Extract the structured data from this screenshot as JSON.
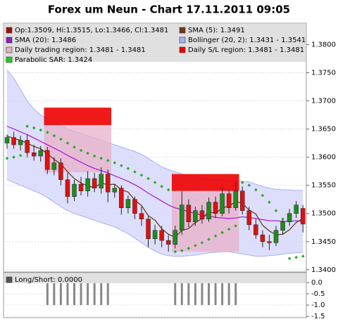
{
  "chart_data": [
    {
      "type": "candlestick",
      "title": "Forex um Neun - Chart 17.11.2011 09:05",
      "legend": [
        {
          "label": "Op:1.3509, Hi:1.3515, Lo:1.3466, Cl:1.3481",
          "color": "#a01010"
        },
        {
          "label": "SMA (5): 1.3491",
          "color": "#6b3b1a"
        },
        {
          "label": "SMA (20): 1.3486",
          "color": "#8b1fc8"
        },
        {
          "label": "Bollinger (20, 2): 1.3431 - 1.3541",
          "color": "#a8b0f0"
        },
        {
          "label": "Daily trading region: 1.3481 - 1.3481",
          "color": "#e8b0c8"
        },
        {
          "label": "Daily S/L region: 1.3481 - 1.3481",
          "color": "#ee0000"
        },
        {
          "label": "Parabolic SAR: 1.3424",
          "color": "#22cc22"
        }
      ],
      "open": [
        1.3625,
        1.3635,
        1.3622,
        1.363,
        1.3608,
        1.3602,
        1.3612,
        1.3578,
        1.359,
        1.356,
        1.353,
        1.3552,
        1.354,
        1.3562,
        1.3545,
        1.357,
        1.3538,
        1.3545,
        1.351,
        1.3525,
        1.35,
        1.349,
        1.3455,
        1.347,
        1.3452,
        1.3445,
        1.347,
        1.3515,
        1.3485,
        1.3505,
        1.349,
        1.352,
        1.35,
        1.3535,
        1.351,
        1.354,
        1.3505,
        1.348,
        1.3462,
        1.345,
        1.3448,
        1.347,
        1.3485,
        1.35,
        1.3509
      ],
      "high": [
        1.364,
        1.3645,
        1.3638,
        1.364,
        1.3622,
        1.362,
        1.3618,
        1.36,
        1.3598,
        1.3572,
        1.356,
        1.3565,
        1.3575,
        1.3572,
        1.3582,
        1.3578,
        1.3552,
        1.355,
        1.3532,
        1.353,
        1.3512,
        1.3495,
        1.348,
        1.3478,
        1.3462,
        1.3478,
        1.354,
        1.3525,
        1.3512,
        1.3515,
        1.3528,
        1.353,
        1.3545,
        1.3542,
        1.3555,
        1.3548,
        1.3512,
        1.349,
        1.347,
        1.3462,
        1.3478,
        1.3492,
        1.3508,
        1.3522,
        1.3515
      ],
      "low": [
        1.3615,
        1.3615,
        1.3612,
        1.36,
        1.3594,
        1.3592,
        1.357,
        1.3568,
        1.355,
        1.3518,
        1.3522,
        1.3532,
        1.353,
        1.3538,
        1.3535,
        1.352,
        1.3528,
        1.3498,
        1.35,
        1.349,
        1.3478,
        1.344,
        1.3445,
        1.344,
        1.3432,
        1.3438,
        1.3462,
        1.3475,
        1.3478,
        1.3482,
        1.3485,
        1.3492,
        1.3495,
        1.35,
        1.3505,
        1.3498,
        1.347,
        1.3455,
        1.344,
        1.3435,
        1.3442,
        1.3462,
        1.3478,
        1.3492,
        1.3466
      ],
      "close": [
        1.3635,
        1.3622,
        1.363,
        1.3608,
        1.3602,
        1.3612,
        1.3578,
        1.359,
        1.356,
        1.353,
        1.3552,
        1.354,
        1.3562,
        1.3545,
        1.357,
        1.3538,
        1.3545,
        1.351,
        1.3525,
        1.35,
        1.349,
        1.3455,
        1.347,
        1.3452,
        1.3445,
        1.347,
        1.3515,
        1.3485,
        1.3505,
        1.349,
        1.352,
        1.35,
        1.3535,
        1.351,
        1.354,
        1.3505,
        1.348,
        1.3462,
        1.345,
        1.3448,
        1.347,
        1.3485,
        1.35,
        1.3515,
        1.3481
      ],
      "up_color": "#1e8c1e",
      "down_color": "#dd1111",
      "sma5": {
        "color": "#6b3b1a",
        "values": [
          1.3638,
          1.3633,
          1.363,
          1.3625,
          1.3619,
          1.3615,
          1.3606,
          1.3596,
          1.3588,
          1.3574,
          1.3562,
          1.3554,
          1.3549,
          1.3546,
          1.3554,
          1.3551,
          1.3552,
          1.3542,
          1.3538,
          1.3524,
          1.3514,
          1.3496,
          1.3488,
          1.3473,
          1.3463,
          1.3458,
          1.347,
          1.3473,
          1.3484,
          1.3491,
          1.3503,
          1.35,
          1.351,
          1.3513,
          1.3521,
          1.3518,
          1.3506,
          1.3499,
          1.3479,
          1.3469,
          1.3462,
          1.3463,
          1.3471,
          1.3484,
          1.3491
        ]
      },
      "sma20": {
        "color": "#b01fd8",
        "values": [
          1.3655,
          1.365,
          1.3645,
          1.364,
          1.3634,
          1.3628,
          1.3622,
          1.3616,
          1.361,
          1.3603,
          1.3597,
          1.3591,
          1.3585,
          1.358,
          1.3576,
          1.3572,
          1.3567,
          1.3562,
          1.3557,
          1.3551,
          1.3544,
          1.3536,
          1.3529,
          1.3522,
          1.3515,
          1.351,
          1.3507,
          1.3503,
          1.35,
          1.3497,
          1.3495,
          1.3493,
          1.3492,
          1.3491,
          1.3492,
          1.3494,
          1.3493,
          1.3491,
          1.3489,
          1.3487,
          1.3487,
          1.3486,
          1.3486,
          1.3487,
          1.3486
        ]
      },
      "bollinger": {
        "color": "#d4d6fa",
        "line_color": "#a8b0f0",
        "upper": [
          1.3755,
          1.374,
          1.372,
          1.37,
          1.3685,
          1.3675,
          1.3668,
          1.3662,
          1.3656,
          1.365,
          1.3646,
          1.3642,
          1.3638,
          1.3634,
          1.363,
          1.3626,
          1.3622,
          1.3618,
          1.3614,
          1.361,
          1.3605,
          1.3598,
          1.359,
          1.3583,
          1.3578,
          1.3574,
          1.357,
          1.3567,
          1.3565,
          1.3563,
          1.3561,
          1.356,
          1.356,
          1.3558,
          1.3558,
          1.3557,
          1.3556,
          1.3552,
          1.3548,
          1.3545,
          1.3543,
          1.3542,
          1.3542,
          1.3541,
          1.3541
        ],
        "lower": [
          1.356,
          1.3555,
          1.355,
          1.3545,
          1.354,
          1.3535,
          1.3528,
          1.352,
          1.3512,
          1.3505,
          1.35,
          1.3496,
          1.3492,
          1.3488,
          1.3484,
          1.348,
          1.3476,
          1.347,
          1.3464,
          1.3456,
          1.3448,
          1.344,
          1.3433,
          1.3428,
          1.3425,
          1.3424,
          1.3424,
          1.3425,
          1.3426,
          1.3428,
          1.343,
          1.3431,
          1.3432,
          1.3432,
          1.343,
          1.3428,
          1.3426,
          1.3424,
          1.3424,
          1.3425,
          1.3426,
          1.3428,
          1.3429,
          1.343,
          1.3431
        ]
      },
      "sar": {
        "color": "#22aa22",
        "values": [
          1.3598,
          1.36,
          1.3603,
          1.3655,
          1.3652,
          1.3648,
          1.3644,
          1.3638,
          1.3632,
          1.3625,
          1.3618,
          1.3612,
          1.3607,
          1.3602,
          1.3598,
          1.3594,
          1.359,
          1.3585,
          1.358,
          1.3574,
          1.3568,
          1.3562,
          1.3555,
          1.3548,
          1.3542,
          1.3432,
          1.3434,
          1.3438,
          1.3443,
          1.3448,
          1.3454,
          1.346,
          1.3466,
          1.3472,
          1.3478,
          1.3555,
          1.355,
          1.3542,
          1.3532,
          1.352,
          1.3505,
          1.349,
          1.342,
          1.3422,
          1.3424
        ]
      },
      "trading_regions": {
        "color": "#e8b0c8",
        "regions": [
          {
            "start": 5.5,
            "end": 15.5,
            "low": 1.3573,
            "high": 1.3657
          },
          {
            "start": 24.5,
            "end": 34.5,
            "low": 1.3432,
            "high": 1.354
          }
        ]
      },
      "sl_regions": {
        "color": "#ee0000",
        "regions": [
          {
            "start": 5.5,
            "end": 15.5,
            "low": 1.3657,
            "high": 1.3688
          },
          {
            "start": 24.5,
            "end": 34.5,
            "low": 1.354,
            "high": 1.357
          }
        ]
      },
      "ylim": [
        1.3396,
        1.3838
      ],
      "yticks": [
        {
          "value": 1.34,
          "label": "1.3400"
        },
        {
          "value": 1.345,
          "label": "1.3450"
        },
        {
          "value": 1.35,
          "label": "1.3500"
        },
        {
          "value": 1.355,
          "label": "1.3550"
        },
        {
          "value": 1.36,
          "label": "1.3600"
        },
        {
          "value": 1.365,
          "label": "1.3650"
        },
        {
          "value": 1.37,
          "label": "1.3700"
        },
        {
          "value": 1.375,
          "label": "1.3750"
        },
        {
          "value": 1.38,
          "label": "1.3800"
        }
      ],
      "grid": true
    },
    {
      "type": "bar",
      "legend": [
        {
          "label": "Long/Short: 0.0000",
          "color": "#555555"
        }
      ],
      "color": "#888888",
      "values": [
        0,
        0,
        0,
        0,
        0,
        0,
        -1,
        -1,
        -1,
        -1,
        -1,
        -1,
        -1,
        -1,
        -1,
        -1,
        0,
        0,
        0,
        0,
        0,
        0,
        0,
        0,
        0,
        -1,
        -1,
        -1,
        -1,
        -1,
        -1,
        -1,
        -1,
        -1,
        -1,
        0,
        0,
        0,
        0,
        0,
        0,
        0,
        0,
        0,
        0
      ],
      "ylim": [
        -1.56,
        0.44
      ],
      "yticks": [
        {
          "value": 0,
          "label": "0.0"
        },
        {
          "value": -0.5,
          "label": "-0.5"
        },
        {
          "value": -1,
          "label": "-1.0"
        },
        {
          "value": -1.5,
          "label": "-1.5"
        }
      ],
      "grid": true
    }
  ]
}
